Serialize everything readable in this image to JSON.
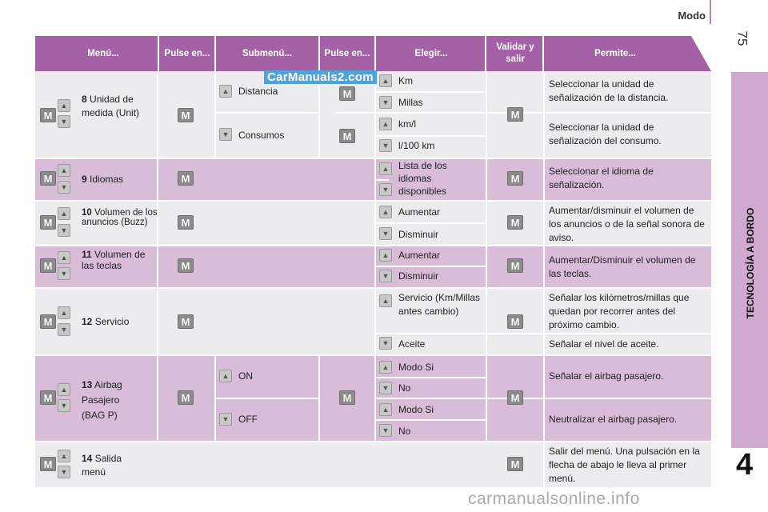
{
  "page": {
    "section_title": "Modo",
    "page_number": "75",
    "side_label": "TECNOLOGÍA A BORDO",
    "chapter": "4",
    "watermark_top": "CarManuals2.com",
    "watermark_bottom": "carmanualsonline.info"
  },
  "header": {
    "menu": "Menú...",
    "press1": "Pulse en...",
    "submenu": "Submenú...",
    "press2": "Pulse en...",
    "choose": "Elegir...",
    "validate": "Validar y salir",
    "allows": "Permite..."
  },
  "icons": {
    "up": "▲",
    "down": "▼",
    "menu": "M"
  },
  "rows": {
    "r8": {
      "num": "8",
      "menu": "Unidad de medida (Unit)",
      "sub1": "Distancia",
      "sub2": "Consumos",
      "c1": "Km",
      "c2": "Millas",
      "c3": "km/l",
      "c4": "l/100 km",
      "p1": "Seleccionar la unidad de señalización de la distancia.",
      "p2": "Seleccionar la unidad de señalización del consumo."
    },
    "r9": {
      "num": "9",
      "menu": "Idiomas",
      "c1": "Lista de los idiomas disponibles",
      "p1": "Seleccionar el idioma de señalización."
    },
    "r10": {
      "num": "10",
      "menu": "Volumen de los anuncios (Buzz)",
      "c1": "Aumentar",
      "c2": "Disminuir",
      "p1": "Aumentar/disminuir el volumen de los anuncios o de la señal sonora de aviso."
    },
    "r11": {
      "num": "11",
      "menu": "Volumen de las teclas",
      "c1": "Aumentar",
      "c2": "Disminuir",
      "p1": "Aumentar/Disminuir el volumen de las teclas."
    },
    "r12": {
      "num": "12",
      "menu": "Servicio",
      "c1": "Servicio (Km/Millas antes cambio)",
      "c2": "Aceite",
      "p1": "Señalar los kilómetros/millas que quedan por recorrer antes del próximo cambio.",
      "p2": "Señalar el nivel de aceite."
    },
    "r13": {
      "num": "13",
      "menu": "Airbag Pasajero (BAG P)",
      "sub1": "ON",
      "sub2": "OFF",
      "c1": "Modo Si",
      "c2": "No",
      "c3": "Modo Si",
      "c4": "No",
      "p1": "Señalar el airbag pasajero.",
      "p2": "Neutralizar el airbag pasajero."
    },
    "r14": {
      "num": "14",
      "menu": "Salida menú",
      "p1": "Salir del menú. Una pulsación en la flecha de abajo le lleva al primer menú."
    }
  },
  "colors": {
    "header": "#a561a5",
    "row_light": "#ececee",
    "row_dark": "#d8bcd8",
    "side_tab": "#cfa9cf"
  }
}
